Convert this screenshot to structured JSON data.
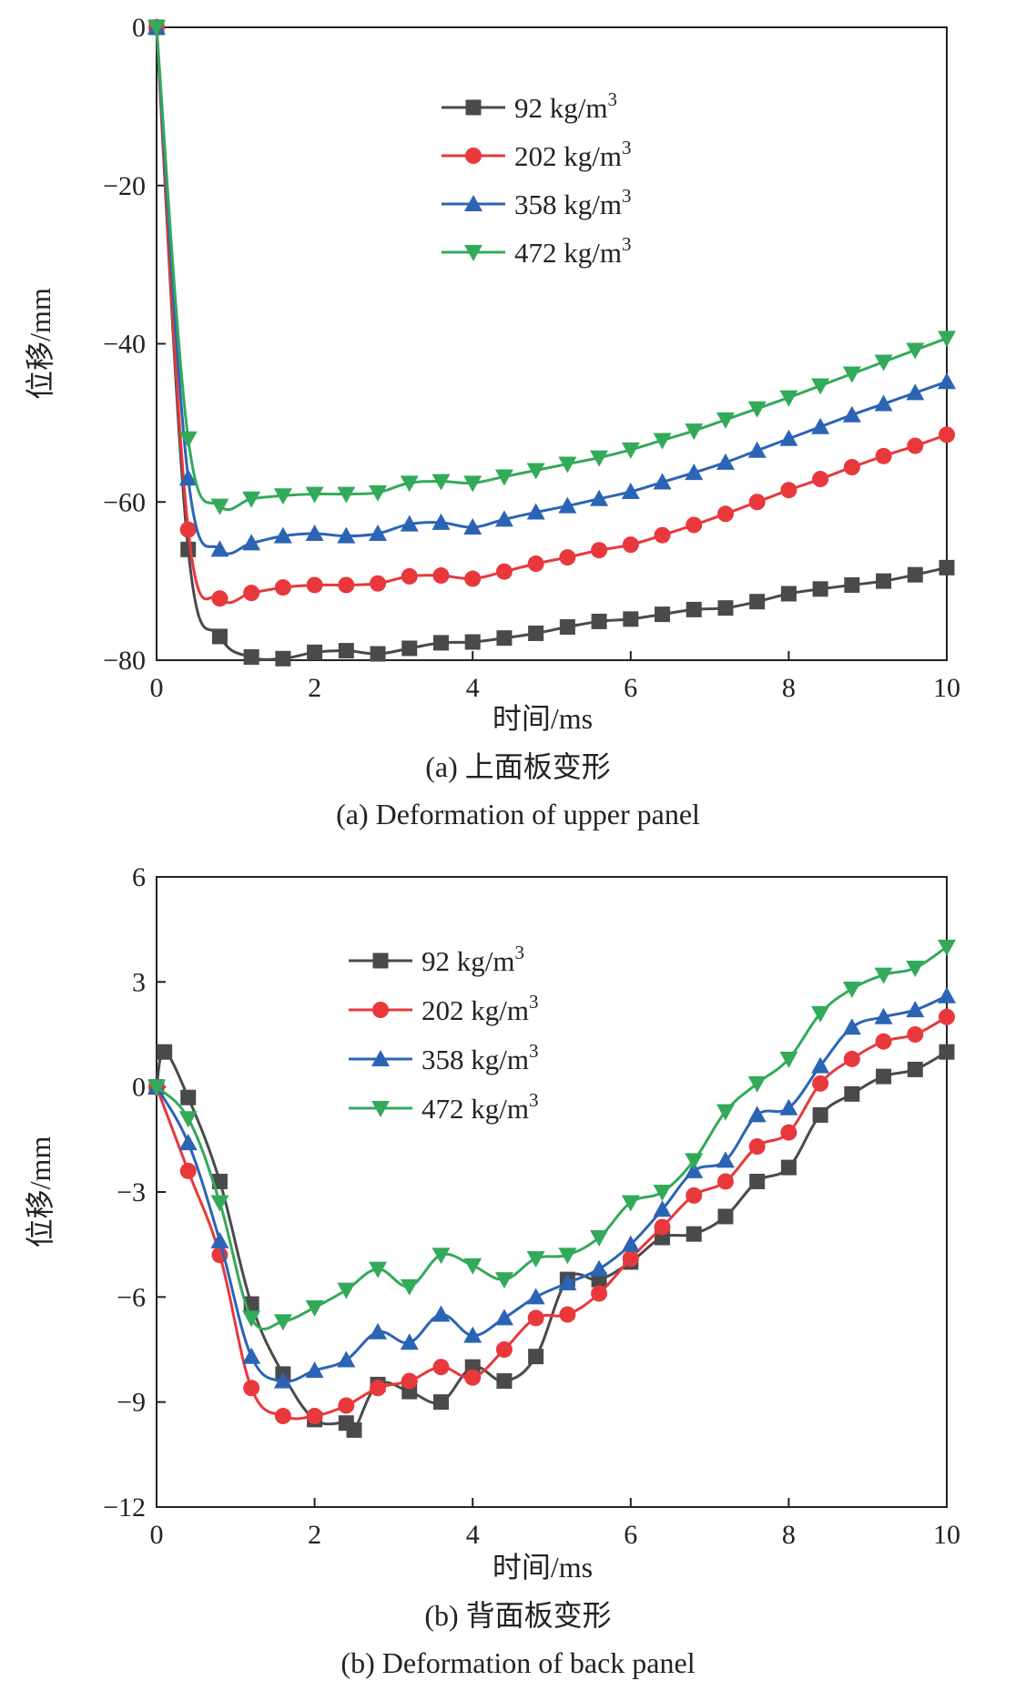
{
  "chart_data": [
    {
      "type": "line",
      "caption_cn": "(a) 上面板变形",
      "caption_en": "(a) Deformation of upper panel",
      "xlabel": "时间/ms",
      "ylabel": "位移/mm",
      "xlim": [
        0,
        10
      ],
      "ylim": [
        -80,
        0
      ],
      "xticks": [
        "0",
        "2",
        "4",
        "6",
        "8",
        "10"
      ],
      "yticks": [
        "0",
        "−20",
        "−40",
        "−60",
        "−80"
      ],
      "legend_position": "top-center",
      "series": [
        {
          "name": "92 kg/m",
          "sup": "3",
          "color": "#4a4a4a",
          "marker": "square",
          "x": [
            0,
            0.4,
            0.8,
            1.2,
            1.6,
            2.0,
            2.4,
            2.8,
            3.2,
            3.6,
            4.0,
            4.4,
            4.8,
            5.2,
            5.6,
            6.0,
            6.4,
            6.8,
            7.2,
            7.6,
            8.0,
            8.4,
            8.8,
            9.2,
            9.6,
            10.0
          ],
          "y": [
            0,
            -66,
            -77,
            -79.6,
            -79.8,
            -79,
            -78.8,
            -79.2,
            -78.5,
            -77.8,
            -77.7,
            -77.2,
            -76.6,
            -75.8,
            -75.1,
            -74.8,
            -74.2,
            -73.6,
            -73.4,
            -72.6,
            -71.6,
            -71,
            -70.5,
            -70,
            -69.2,
            -68.3
          ]
        },
        {
          "name": "202 kg/m",
          "sup": "3",
          "color": "#e8383c",
          "marker": "circle",
          "x": [
            0,
            0.4,
            0.8,
            1.2,
            1.6,
            2.0,
            2.4,
            2.8,
            3.2,
            3.6,
            4.0,
            4.4,
            4.8,
            5.2,
            5.6,
            6.0,
            6.4,
            6.8,
            7.2,
            7.6,
            8.0,
            8.4,
            8.8,
            9.2,
            9.6,
            10.0
          ],
          "y": [
            0,
            -63.5,
            -72.2,
            -71.5,
            -70.8,
            -70.5,
            -70.5,
            -70.3,
            -69.4,
            -69.3,
            -69.7,
            -68.8,
            -67.8,
            -67,
            -66.1,
            -65.4,
            -64.2,
            -62.9,
            -61.5,
            -60,
            -58.5,
            -57.1,
            -55.6,
            -54.2,
            -52.9,
            -51.5
          ]
        },
        {
          "name": "358 kg/m",
          "sup": "3",
          "color": "#2b64b4",
          "marker": "triangle-up",
          "x": [
            0,
            0.4,
            0.8,
            1.2,
            1.6,
            2.0,
            2.4,
            2.8,
            3.2,
            3.6,
            4.0,
            4.4,
            4.8,
            5.2,
            5.6,
            6.0,
            6.4,
            6.8,
            7.2,
            7.6,
            8.0,
            8.4,
            8.8,
            9.2,
            9.6,
            10.0
          ],
          "y": [
            0,
            -57,
            -66,
            -65.2,
            -64.3,
            -64,
            -64.3,
            -64,
            -62.8,
            -62.6,
            -63.2,
            -62.2,
            -61.3,
            -60.5,
            -59.6,
            -58.7,
            -57.5,
            -56.3,
            -55,
            -53.5,
            -52,
            -50.5,
            -49,
            -47.6,
            -46.2,
            -44.8
          ]
        },
        {
          "name": "472 kg/m",
          "sup": "3",
          "color": "#33aa5a",
          "marker": "triangle-down",
          "x": [
            0,
            0.4,
            0.8,
            1.2,
            1.6,
            2.0,
            2.4,
            2.8,
            3.2,
            3.6,
            4.0,
            4.4,
            4.8,
            5.2,
            5.6,
            6.0,
            6.4,
            6.8,
            7.2,
            7.6,
            8.0,
            8.4,
            8.8,
            9.2,
            9.6,
            10.0
          ],
          "y": [
            0,
            -52,
            -60.5,
            -59.6,
            -59.2,
            -59,
            -59,
            -58.8,
            -57.6,
            -57.4,
            -57.6,
            -56.8,
            -56,
            -55.2,
            -54.4,
            -53.4,
            -52.2,
            -51,
            -49.6,
            -48.2,
            -46.8,
            -45.3,
            -43.8,
            -42.3,
            -40.8,
            -39.3
          ]
        }
      ]
    },
    {
      "type": "line",
      "caption_cn": "(b) 背面板变形",
      "caption_en": "(b) Deformation of back panel",
      "xlabel": "时间/ms",
      "ylabel": "位移/mm",
      "xlim": [
        0,
        10
      ],
      "ylim": [
        -12,
        6
      ],
      "xticks": [
        "0",
        "2",
        "4",
        "6",
        "8",
        "10"
      ],
      "yticks": [
        "6",
        "3",
        "0",
        "−3",
        "−6",
        "−9",
        "−12"
      ],
      "legend_position": "top-left",
      "series": [
        {
          "name": "92 kg/m",
          "sup": "3",
          "color": "#4a4a4a",
          "marker": "square",
          "x": [
            0,
            0.1,
            0.4,
            0.8,
            1.2,
            1.6,
            2.0,
            2.4,
            2.5,
            2.8,
            3.2,
            3.6,
            4.0,
            4.4,
            4.8,
            5.2,
            5.6,
            6.0,
            6.4,
            6.8,
            7.2,
            7.6,
            8.0,
            8.4,
            8.8,
            9.2,
            9.6,
            10.0
          ],
          "y": [
            0,
            1.0,
            -0.3,
            -2.7,
            -6.2,
            -8.2,
            -9.5,
            -9.6,
            -9.8,
            -8.5,
            -8.7,
            -9.0,
            -8.0,
            -8.4,
            -7.7,
            -5.5,
            -5.5,
            -5.0,
            -4.3,
            -4.2,
            -3.7,
            -2.7,
            -2.3,
            -0.8,
            -0.2,
            0.3,
            0.5,
            1.0
          ]
        },
        {
          "name": "202 kg/m",
          "sup": "3",
          "color": "#e8383c",
          "marker": "circle",
          "x": [
            0,
            0.4,
            0.8,
            1.2,
            1.6,
            2.0,
            2.4,
            2.8,
            3.2,
            3.6,
            4.0,
            4.4,
            4.8,
            5.2,
            5.6,
            6.0,
            6.4,
            6.8,
            7.2,
            7.6,
            8.0,
            8.4,
            8.8,
            9.2,
            9.6,
            10.0
          ],
          "y": [
            0,
            -2.4,
            -4.8,
            -8.6,
            -9.4,
            -9.4,
            -9.1,
            -8.6,
            -8.4,
            -8.0,
            -8.3,
            -7.5,
            -6.6,
            -6.5,
            -5.9,
            -4.9,
            -4.0,
            -3.1,
            -2.7,
            -1.7,
            -1.3,
            0.1,
            0.8,
            1.3,
            1.5,
            2.0
          ]
        },
        {
          "name": "358 kg/m",
          "sup": "3",
          "color": "#2b64b4",
          "marker": "triangle-up",
          "x": [
            0,
            0.4,
            0.8,
            1.2,
            1.6,
            2.0,
            2.4,
            2.8,
            3.2,
            3.6,
            4.0,
            4.4,
            4.8,
            5.2,
            5.6,
            6.0,
            6.4,
            6.8,
            7.2,
            7.6,
            8.0,
            8.4,
            8.8,
            9.2,
            9.6,
            10.0
          ],
          "y": [
            0,
            -1.6,
            -4.4,
            -7.7,
            -8.4,
            -8.1,
            -7.8,
            -7.0,
            -7.3,
            -6.5,
            -7.1,
            -6.6,
            -6.0,
            -5.6,
            -5.2,
            -4.5,
            -3.5,
            -2.4,
            -2.1,
            -0.8,
            -0.6,
            0.6,
            1.7,
            2.0,
            2.2,
            2.6
          ]
        },
        {
          "name": "472 kg/m",
          "sup": "3",
          "color": "#33aa5a",
          "marker": "triangle-down",
          "x": [
            0,
            0.4,
            0.8,
            1.2,
            1.6,
            2.0,
            2.4,
            2.8,
            3.2,
            3.6,
            4.0,
            4.4,
            4.8,
            5.2,
            5.6,
            6.0,
            6.4,
            6.8,
            7.2,
            7.6,
            8.0,
            8.4,
            8.8,
            9.2,
            9.6,
            10.0
          ],
          "y": [
            0,
            -0.9,
            -3.3,
            -6.6,
            -6.7,
            -6.3,
            -5.8,
            -5.2,
            -5.7,
            -4.8,
            -5.1,
            -5.5,
            -4.9,
            -4.8,
            -4.3,
            -3.3,
            -3.0,
            -2.1,
            -0.7,
            0.1,
            0.8,
            2.1,
            2.8,
            3.2,
            3.4,
            4.0
          ]
        }
      ]
    }
  ]
}
